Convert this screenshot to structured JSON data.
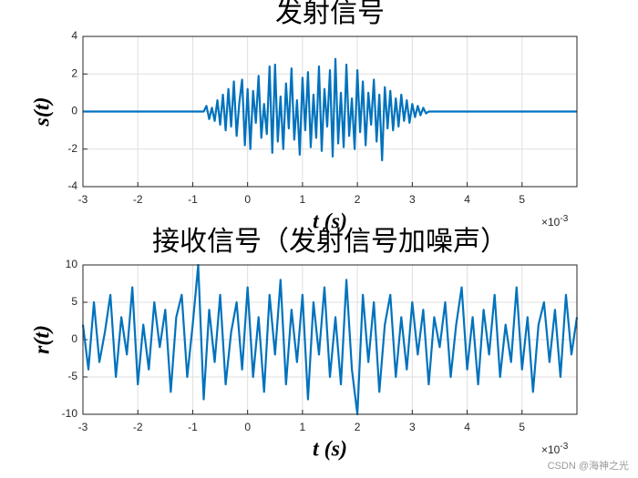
{
  "chart_data": [
    {
      "type": "line",
      "title": "发射信号",
      "xlabel": "t (s)",
      "ylabel": "s(t)",
      "x_exponent": {
        "base": "×10",
        "power": "-3"
      },
      "xlim": [
        -3,
        6
      ],
      "ylim": [
        -4,
        4
      ],
      "xticks": [
        -3,
        -2,
        -1,
        0,
        1,
        2,
        3,
        4,
        5
      ],
      "yticks": [
        -4,
        -2,
        0,
        2,
        4
      ],
      "grid": true,
      "x": [
        -3,
        -2,
        -1,
        -0.8,
        -0.75,
        -0.7,
        -0.65,
        -0.6,
        -0.55,
        -0.5,
        -0.45,
        -0.4,
        -0.35,
        -0.3,
        -0.25,
        -0.2,
        -0.15,
        -0.1,
        -0.05,
        0,
        0.05,
        0.1,
        0.15,
        0.2,
        0.25,
        0.3,
        0.35,
        0.4,
        0.45,
        0.5,
        0.55,
        0.6,
        0.65,
        0.7,
        0.75,
        0.8,
        0.85,
        0.9,
        0.95,
        1.0,
        1.05,
        1.1,
        1.15,
        1.2,
        1.25,
        1.3,
        1.35,
        1.4,
        1.45,
        1.5,
        1.55,
        1.6,
        1.65,
        1.7,
        1.75,
        1.8,
        1.85,
        1.9,
        1.95,
        2.0,
        2.05,
        2.1,
        2.15,
        2.2,
        2.25,
        2.3,
        2.35,
        2.4,
        2.45,
        2.5,
        2.55,
        2.6,
        2.65,
        2.7,
        2.75,
        2.8,
        2.85,
        2.9,
        2.95,
        3.0,
        3.05,
        3.1,
        3.15,
        3.2,
        3.25,
        3.3,
        3.5,
        4.5,
        6
      ],
      "series": [
        {
          "color": "#0072bd",
          "values": [
            0,
            0,
            0,
            0,
            0.3,
            -0.4,
            0.2,
            -0.5,
            0.6,
            -0.7,
            0.9,
            -1.0,
            1.2,
            -0.8,
            1.6,
            -1.3,
            0.5,
            1.7,
            -1.8,
            1.2,
            -2.0,
            1.1,
            -0.6,
            1.9,
            -1.4,
            0.4,
            -1.2,
            2.4,
            -2.2,
            2.5,
            -1.6,
            0.8,
            -2.0,
            1.5,
            -0.9,
            2.3,
            -1.5,
            0.6,
            -2.3,
            1.8,
            -1.0,
            2.1,
            -1.9,
            0.9,
            -1.4,
            2.4,
            -2.1,
            1.2,
            -0.8,
            2.2,
            -2.4,
            2.8,
            -1.7,
            1.0,
            -1.9,
            2.5,
            -1.3,
            0.7,
            -2.0,
            2.2,
            -1.1,
            1.6,
            -1.8,
            1.0,
            -0.7,
            1.7,
            -1.6,
            0.9,
            -2.6,
            1.3,
            -0.9,
            1.1,
            -1.0,
            0.7,
            -0.8,
            0.9,
            -0.5,
            0.6,
            -0.6,
            0.4,
            -0.3,
            0.3,
            -0.2,
            0.2,
            -0.1,
            0,
            0,
            0,
            0
          ]
        }
      ]
    },
    {
      "type": "line",
      "title": "接收信号（发射信号加噪声）",
      "xlabel": "t (s)",
      "ylabel": "r(t)",
      "x_exponent": {
        "base": "×10",
        "power": "-3"
      },
      "xlim": [
        -3,
        6
      ],
      "ylim": [
        -10,
        10
      ],
      "xticks": [
        -3,
        -2,
        -1,
        0,
        1,
        2,
        3,
        4,
        5
      ],
      "yticks": [
        -10,
        -5,
        0,
        5,
        10
      ],
      "grid": true,
      "x": [
        -3,
        -2.9,
        -2.8,
        -2.7,
        -2.6,
        -2.5,
        -2.4,
        -2.3,
        -2.2,
        -2.1,
        -2.0,
        -1.9,
        -1.8,
        -1.7,
        -1.6,
        -1.5,
        -1.4,
        -1.3,
        -1.2,
        -1.1,
        -1.0,
        -0.9,
        -0.8,
        -0.7,
        -0.6,
        -0.5,
        -0.4,
        -0.3,
        -0.2,
        -0.1,
        0,
        0.1,
        0.2,
        0.3,
        0.4,
        0.5,
        0.6,
        0.7,
        0.8,
        0.9,
        1.0,
        1.1,
        1.2,
        1.3,
        1.4,
        1.5,
        1.6,
        1.7,
        1.8,
        1.9,
        2.0,
        2.1,
        2.2,
        2.3,
        2.4,
        2.5,
        2.6,
        2.7,
        2.8,
        2.9,
        3.0,
        3.1,
        3.2,
        3.3,
        3.4,
        3.5,
        3.6,
        3.7,
        3.8,
        3.9,
        4.0,
        4.1,
        4.2,
        4.3,
        4.4,
        4.5,
        4.6,
        4.7,
        4.8,
        4.9,
        5.0,
        5.1,
        5.2,
        5.3,
        5.4,
        5.5,
        5.6,
        5.7,
        5.8,
        5.9,
        6.0
      ],
      "series": [
        {
          "color": "#0072bd",
          "values": [
            2,
            -4,
            5,
            -3,
            1,
            6,
            -5,
            3,
            -2,
            7,
            -6,
            2,
            -4,
            5,
            -1,
            4,
            -7,
            3,
            6,
            -5,
            2,
            10,
            -8,
            4,
            -3,
            6,
            -6,
            1,
            5,
            -4,
            7,
            -5,
            3,
            -7,
            6,
            -2,
            8,
            -6,
            4,
            -3,
            6,
            -8,
            5,
            -2,
            7,
            -5,
            3,
            -6,
            8,
            -4,
            -10,
            6,
            -3,
            5,
            -7,
            2,
            6,
            -5,
            3,
            -4,
            5,
            -2,
            4,
            -6,
            3,
            -1,
            5,
            -5,
            2,
            7,
            -4,
            3,
            -6,
            4,
            -2,
            6,
            -5,
            2,
            -3,
            7,
            -4,
            3,
            -7,
            2,
            5,
            -3,
            4,
            -5,
            6,
            -2,
            3
          ]
        }
      ]
    }
  ],
  "watermark": "CSDN @海神之光"
}
